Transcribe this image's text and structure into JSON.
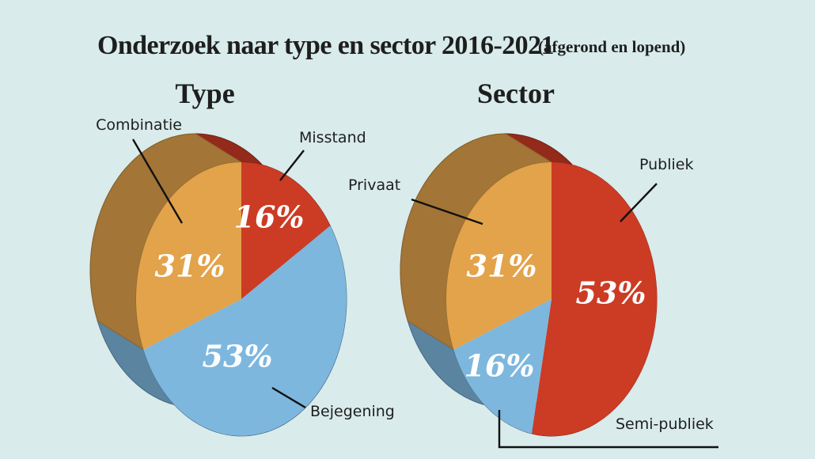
{
  "title": "Onderzoek naar type en sector 2016-2021",
  "subtitle": "(afgerond en lopend)",
  "chart_data": [
    {
      "type": "pie",
      "title": "Type",
      "slices": [
        {
          "label": "Misstand",
          "value": 16,
          "value_label": "16%",
          "color": "#cc3b24"
        },
        {
          "label": "Bejegening",
          "value": 53,
          "value_label": "53%",
          "color": "#7db7de"
        },
        {
          "label": "Combinatie",
          "value": 31,
          "value_label": "31%",
          "color": "#e2a34b"
        }
      ]
    },
    {
      "type": "pie",
      "title": "Sector",
      "slices": [
        {
          "label": "Publiek",
          "value": 53,
          "value_label": "53%",
          "color": "#cc3b24"
        },
        {
          "label": "Semi-publiek",
          "value": 16,
          "value_label": "16%",
          "color": "#7db7de"
        },
        {
          "label": "Privaat",
          "value": 31,
          "value_label": "31%",
          "color": "#e2a34b"
        }
      ]
    }
  ]
}
